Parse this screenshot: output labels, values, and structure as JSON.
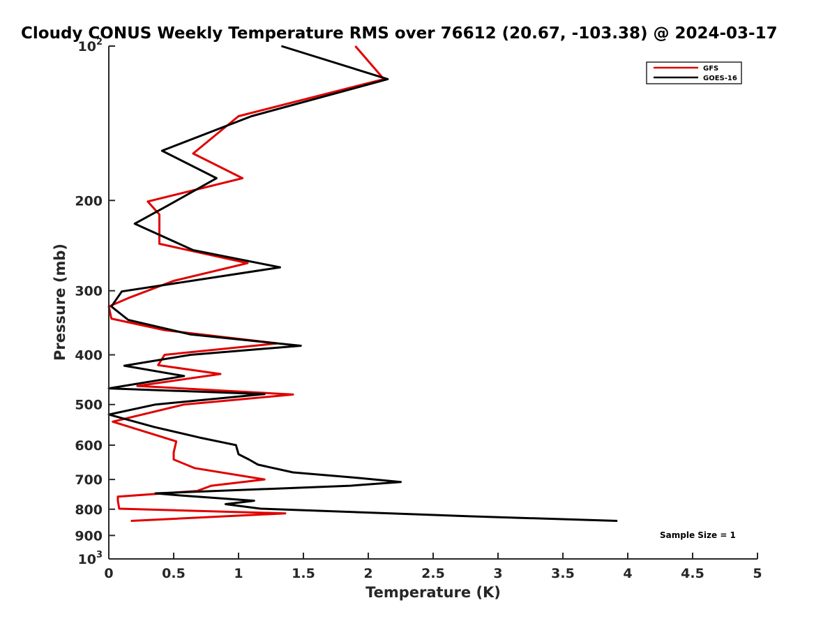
{
  "chart_data": {
    "type": "line",
    "title": "Cloudy CONUS Weekly Temperature RMS over 76612 (20.67, -103.38) @ 2024-03-17",
    "xlabel": "Temperature (K)",
    "ylabel": "Pressure (mb)",
    "xlim": [
      0,
      5
    ],
    "ylim": [
      100,
      1000
    ],
    "y_scale": "log",
    "y_reversed": true,
    "grid": false,
    "legend_position": "top-right",
    "x_ticks": [
      "0",
      "0.5",
      "1",
      "1.5",
      "2",
      "2.5",
      "3",
      "3.5",
      "4",
      "4.5",
      "5"
    ],
    "y_ticks": [
      {
        "value": 100,
        "base": "10",
        "exp": "2"
      },
      {
        "value": 200,
        "label": "200"
      },
      {
        "value": 300,
        "label": "300"
      },
      {
        "value": 400,
        "label": "400"
      },
      {
        "value": 500,
        "label": "500"
      },
      {
        "value": 600,
        "label": "600"
      },
      {
        "value": 700,
        "label": "700"
      },
      {
        "value": 800,
        "label": "800"
      },
      {
        "value": 900,
        "label": "900"
      },
      {
        "value": 1000,
        "base": "10",
        "exp": "3"
      }
    ],
    "annotation": "Sample Size = 1",
    "series": [
      {
        "name": "GFS",
        "color": "#e00000",
        "points": [
          [
            1.9,
            100
          ],
          [
            2.12,
            116
          ],
          [
            1.0,
            137
          ],
          [
            0.65,
            162
          ],
          [
            1.03,
            181
          ],
          [
            0.3,
            201
          ],
          [
            0.39,
            213
          ],
          [
            0.39,
            243
          ],
          [
            1.07,
            265
          ],
          [
            0.5,
            287
          ],
          [
            0.15,
            310
          ],
          [
            0.0,
            322
          ],
          [
            0.02,
            340
          ],
          [
            0.43,
            358
          ],
          [
            1.3,
            380
          ],
          [
            0.43,
            400
          ],
          [
            0.38,
            419
          ],
          [
            0.86,
            436
          ],
          [
            0.22,
            460
          ],
          [
            1.42,
            478
          ],
          [
            0.58,
            500
          ],
          [
            0.03,
            540
          ],
          [
            0.52,
            590
          ],
          [
            0.5,
            620
          ],
          [
            0.5,
            640
          ],
          [
            0.66,
            665
          ],
          [
            1.2,
            700
          ],
          [
            0.79,
            720
          ],
          [
            0.68,
            737
          ],
          [
            0.07,
            756
          ],
          [
            0.07,
            770
          ],
          [
            0.08,
            798
          ],
          [
            1.36,
            815
          ],
          [
            0.17,
            843
          ]
        ]
      },
      {
        "name": "GOES-16",
        "color": "#000000",
        "points": [
          [
            1.33,
            100
          ],
          [
            2.15,
            116
          ],
          [
            1.1,
            137
          ],
          [
            0.41,
            160
          ],
          [
            0.83,
            181
          ],
          [
            0.45,
            205
          ],
          [
            0.2,
            222
          ],
          [
            0.65,
            250
          ],
          [
            1.32,
            270
          ],
          [
            0.1,
            301
          ],
          [
            0.02,
            322
          ],
          [
            0.15,
            342
          ],
          [
            0.63,
            365
          ],
          [
            1.48,
            384
          ],
          [
            0.63,
            400
          ],
          [
            0.12,
            420
          ],
          [
            0.58,
            440
          ],
          [
            0.0,
            465
          ],
          [
            1.2,
            477
          ],
          [
            0.36,
            500
          ],
          [
            0.0,
            523
          ],
          [
            0.35,
            553
          ],
          [
            0.7,
            580
          ],
          [
            0.98,
            600
          ],
          [
            1.0,
            625
          ],
          [
            1.08,
            640
          ],
          [
            1.15,
            655
          ],
          [
            1.42,
            678
          ],
          [
            1.92,
            695
          ],
          [
            2.25,
            708
          ],
          [
            1.86,
            720
          ],
          [
            0.36,
            745
          ],
          [
            0.55,
            752
          ],
          [
            1.12,
            770
          ],
          [
            0.9,
            782
          ],
          [
            1.17,
            798
          ],
          [
            2.8,
            826
          ],
          [
            3.92,
            843
          ]
        ]
      }
    ]
  }
}
